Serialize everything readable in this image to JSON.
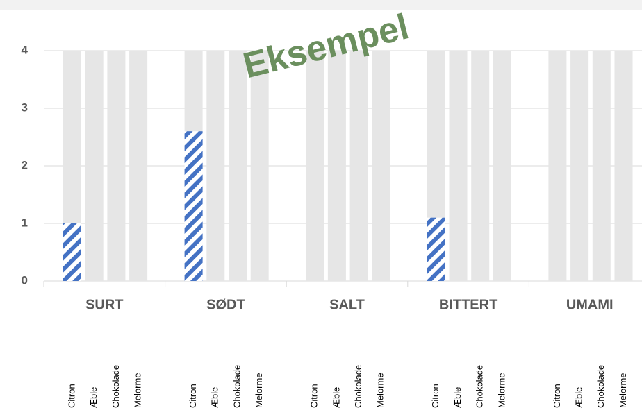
{
  "chart_data": {
    "type": "bar",
    "watermark": "Eksempel",
    "groups": [
      "SURT",
      "SØDT",
      "SALT",
      "BITTERT",
      "UMAMI"
    ],
    "categories": [
      "Citron",
      "Æble",
      "Chokolade",
      "Melorme",
      "Citron",
      "Æble",
      "Chokolade",
      "Melorme",
      "Citron",
      "Æble",
      "Chokolade",
      "Melorme",
      "Citron",
      "Æble",
      "Chokolade",
      "Melorme",
      "Citron",
      "Æble",
      "Chokolade",
      "Melorme"
    ],
    "series": [
      {
        "color": "#e6e6e6",
        "values": [
          4,
          4,
          4,
          4,
          4,
          4,
          4,
          4,
          4,
          4,
          4,
          4,
          4,
          4,
          4,
          4,
          4,
          4,
          4,
          4
        ]
      },
      {
        "color": "#4472c4",
        "pattern": "hatch",
        "values": [
          1,
          null,
          null,
          null,
          2.6,
          null,
          null,
          null,
          null,
          null,
          null,
          null,
          1.1,
          null,
          null,
          null,
          null,
          null,
          null,
          null
        ]
      }
    ],
    "ylim": [
      0,
      4
    ],
    "yticks": [
      0,
      1,
      2,
      3,
      4
    ],
    "grid": true,
    "watermark_color": "#6b8f5e"
  }
}
